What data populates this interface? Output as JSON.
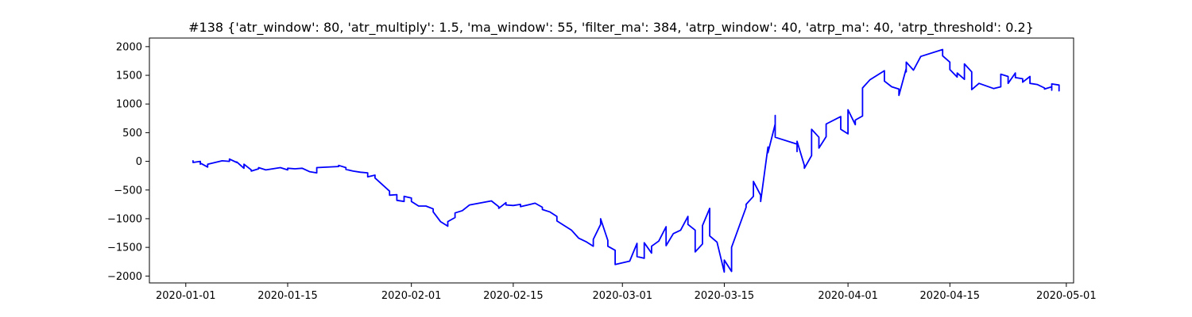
{
  "chart_data": {
    "type": "line",
    "title": "#138 {'atr_window': 80, 'atr_multiply': 1.5, 'ma_window': 55, 'filter_ma': 384, 'atrp_window': 40, 'atrp_ma': 40, 'atrp_threshold': 0.2}",
    "xlabel": "",
    "ylabel": "",
    "x_type": "date",
    "xlim": [
      "2019-12-27",
      "2020-05-02"
    ],
    "ylim": [
      -2120,
      2150
    ],
    "x_ticks": [
      "2020-01-01",
      "2020-01-15",
      "2020-02-01",
      "2020-02-15",
      "2020-03-01",
      "2020-03-15",
      "2020-04-01",
      "2020-04-15",
      "2020-05-01"
    ],
    "x_tick_labels": [
      "2020-01-01",
      "2020-01-15",
      "2020-02-01",
      "2020-02-15",
      "2020-03-01",
      "2020-03-15",
      "2020-04-01",
      "2020-04-15",
      "2020-05-01"
    ],
    "y_ticks": [
      -2000,
      -1500,
      -1000,
      -500,
      0,
      500,
      1000,
      1500,
      2000
    ],
    "y_tick_labels": [
      "−2000",
      "−1500",
      "−1000",
      "−500",
      "0",
      "500",
      "1000",
      "1500",
      "2000"
    ],
    "grid": false,
    "legend": "none",
    "series": [
      {
        "color": "#0000ff",
        "points": [
          [
            "2020-01-02",
            10
          ],
          [
            "2020-01-02",
            -20
          ],
          [
            "2020-01-03",
            0
          ],
          [
            "2020-01-03",
            -50
          ],
          [
            "2020-01-03",
            -30
          ],
          [
            "2020-01-04",
            -100
          ],
          [
            "2020-01-04",
            -50
          ],
          [
            "2020-01-06",
            10
          ],
          [
            "2020-01-07",
            0
          ],
          [
            "2020-01-07",
            40
          ],
          [
            "2020-01-08",
            -20
          ],
          [
            "2020-01-08",
            -10
          ],
          [
            "2020-01-09",
            -120
          ],
          [
            "2020-01-09",
            -50
          ],
          [
            "2020-01-10",
            -150
          ],
          [
            "2020-01-10",
            -170
          ],
          [
            "2020-01-11",
            -130
          ],
          [
            "2020-01-11",
            -110
          ],
          [
            "2020-01-12",
            -150
          ],
          [
            "2020-01-14",
            -110
          ],
          [
            "2020-01-15",
            -150
          ],
          [
            "2020-01-15",
            -120
          ],
          [
            "2020-01-16",
            -130
          ],
          [
            "2020-01-17",
            -120
          ],
          [
            "2020-01-18",
            -180
          ],
          [
            "2020-01-19",
            -200
          ],
          [
            "2020-01-19",
            -110
          ],
          [
            "2020-01-22",
            -90
          ],
          [
            "2020-01-22",
            -70
          ],
          [
            "2020-01-23",
            -110
          ],
          [
            "2020-01-23",
            -140
          ],
          [
            "2020-01-24",
            -170
          ],
          [
            "2020-01-25",
            -190
          ],
          [
            "2020-01-26",
            -200
          ],
          [
            "2020-01-26",
            -270
          ],
          [
            "2020-01-27",
            -240
          ],
          [
            "2020-01-27",
            -290
          ],
          [
            "2020-01-29",
            -520
          ],
          [
            "2020-01-29",
            -590
          ],
          [
            "2020-01-30",
            -580
          ],
          [
            "2020-01-30",
            -680
          ],
          [
            "2020-01-31",
            -700
          ],
          [
            "2020-01-31",
            -610
          ],
          [
            "2020-02-01",
            -640
          ],
          [
            "2020-02-01",
            -700
          ],
          [
            "2020-02-02",
            -780
          ],
          [
            "2020-02-03",
            -780
          ],
          [
            "2020-02-04",
            -830
          ],
          [
            "2020-02-04",
            -880
          ],
          [
            "2020-02-05",
            -1050
          ],
          [
            "2020-02-06",
            -1130
          ],
          [
            "2020-02-06",
            -1050
          ],
          [
            "2020-02-07",
            -980
          ],
          [
            "2020-02-07",
            -900
          ],
          [
            "2020-02-08",
            -860
          ],
          [
            "2020-02-09",
            -760
          ],
          [
            "2020-02-12",
            -690
          ],
          [
            "2020-02-13",
            -790
          ],
          [
            "2020-02-13",
            -820
          ],
          [
            "2020-02-14",
            -720
          ],
          [
            "2020-02-14",
            -760
          ],
          [
            "2020-02-15",
            -770
          ],
          [
            "2020-02-16",
            -750
          ],
          [
            "2020-02-16",
            -790
          ],
          [
            "2020-02-17",
            -760
          ],
          [
            "2020-02-18",
            -730
          ],
          [
            "2020-02-19",
            -800
          ],
          [
            "2020-02-19",
            -840
          ],
          [
            "2020-02-20",
            -880
          ],
          [
            "2020-02-21",
            -960
          ],
          [
            "2020-02-21",
            -1040
          ],
          [
            "2020-02-22",
            -1120
          ],
          [
            "2020-02-23",
            -1200
          ],
          [
            "2020-02-24",
            -1340
          ],
          [
            "2020-02-25",
            -1400
          ],
          [
            "2020-02-26",
            -1480
          ],
          [
            "2020-02-26",
            -1360
          ],
          [
            "2020-02-27",
            -1100
          ],
          [
            "2020-02-27",
            -1000
          ],
          [
            "2020-02-28",
            -1380
          ],
          [
            "2020-02-28",
            -1480
          ],
          [
            "2020-02-29",
            -1550
          ],
          [
            "2020-02-29",
            -1800
          ],
          [
            "2020-03-02",
            -1740
          ],
          [
            "2020-03-03",
            -1430
          ],
          [
            "2020-03-03",
            -1660
          ],
          [
            "2020-03-04",
            -1690
          ],
          [
            "2020-03-04",
            -1420
          ],
          [
            "2020-03-05",
            -1600
          ],
          [
            "2020-03-05",
            -1480
          ],
          [
            "2020-03-06",
            -1390
          ],
          [
            "2020-03-07",
            -1140
          ],
          [
            "2020-03-07",
            -1470
          ],
          [
            "2020-03-08",
            -1260
          ],
          [
            "2020-03-09",
            -1200
          ],
          [
            "2020-03-10",
            -960
          ],
          [
            "2020-03-10",
            -1100
          ],
          [
            "2020-03-11",
            -1200
          ],
          [
            "2020-03-11",
            -1580
          ],
          [
            "2020-03-12",
            -1440
          ],
          [
            "2020-03-12",
            -1120
          ],
          [
            "2020-03-13",
            -820
          ],
          [
            "2020-03-13",
            -1300
          ],
          [
            "2020-03-14",
            -1410
          ],
          [
            "2020-03-15",
            -1930
          ],
          [
            "2020-03-15",
            -1720
          ],
          [
            "2020-03-16",
            -1920
          ],
          [
            "2020-03-16",
            -1500
          ],
          [
            "2020-03-18",
            -800
          ],
          [
            "2020-03-18",
            -750
          ],
          [
            "2020-03-19",
            -610
          ],
          [
            "2020-03-19",
            -350
          ],
          [
            "2020-03-20",
            -590
          ],
          [
            "2020-03-20",
            -700
          ],
          [
            "2020-03-21",
            250
          ],
          [
            "2020-03-21",
            150
          ],
          [
            "2020-03-22",
            650
          ],
          [
            "2020-03-22",
            800
          ],
          [
            "2020-03-22",
            420
          ],
          [
            "2020-03-25",
            300
          ],
          [
            "2020-03-25",
            170
          ],
          [
            "2020-03-25",
            350
          ],
          [
            "2020-03-26",
            -70
          ],
          [
            "2020-03-26",
            -120
          ],
          [
            "2020-03-27",
            100
          ],
          [
            "2020-03-27",
            560
          ],
          [
            "2020-03-28",
            420
          ],
          [
            "2020-03-28",
            230
          ],
          [
            "2020-03-29",
            430
          ],
          [
            "2020-03-29",
            650
          ],
          [
            "2020-03-31",
            780
          ],
          [
            "2020-03-31",
            560
          ],
          [
            "2020-04-01",
            480
          ],
          [
            "2020-04-01",
            900
          ],
          [
            "2020-04-02",
            640
          ],
          [
            "2020-04-02",
            720
          ],
          [
            "2020-04-03",
            790
          ],
          [
            "2020-04-03",
            1280
          ],
          [
            "2020-04-04",
            1420
          ],
          [
            "2020-04-06",
            1580
          ],
          [
            "2020-04-06",
            1400
          ],
          [
            "2020-04-07",
            1300
          ],
          [
            "2020-04-08",
            1260
          ],
          [
            "2020-04-08",
            1150
          ],
          [
            "2020-04-09",
            1620
          ],
          [
            "2020-04-09",
            1560
          ],
          [
            "2020-04-09",
            1730
          ],
          [
            "2020-04-10",
            1590
          ],
          [
            "2020-04-11",
            1830
          ],
          [
            "2020-04-14",
            1950
          ],
          [
            "2020-04-14",
            1840
          ],
          [
            "2020-04-15",
            1730
          ],
          [
            "2020-04-15",
            1600
          ],
          [
            "2020-04-16",
            1470
          ],
          [
            "2020-04-16",
            1540
          ],
          [
            "2020-04-17",
            1430
          ],
          [
            "2020-04-17",
            1620
          ],
          [
            "2020-04-17",
            1700
          ],
          [
            "2020-04-18",
            1560
          ],
          [
            "2020-04-18",
            1250
          ],
          [
            "2020-04-19",
            1360
          ],
          [
            "2020-04-21",
            1270
          ],
          [
            "2020-04-22",
            1300
          ],
          [
            "2020-04-22",
            1520
          ],
          [
            "2020-04-23",
            1480
          ],
          [
            "2020-04-23",
            1360
          ],
          [
            "2020-04-24",
            1540
          ],
          [
            "2020-04-24",
            1460
          ],
          [
            "2020-04-25",
            1440
          ],
          [
            "2020-04-25",
            1380
          ],
          [
            "2020-04-26",
            1480
          ],
          [
            "2020-04-26",
            1360
          ],
          [
            "2020-04-27",
            1340
          ],
          [
            "2020-04-28",
            1280
          ],
          [
            "2020-04-28",
            1260
          ],
          [
            "2020-04-29",
            1300
          ],
          [
            "2020-04-29",
            1240
          ],
          [
            "2020-04-29",
            1350
          ],
          [
            "2020-04-30",
            1330
          ],
          [
            "2020-04-30",
            1230
          ]
        ]
      }
    ]
  }
}
